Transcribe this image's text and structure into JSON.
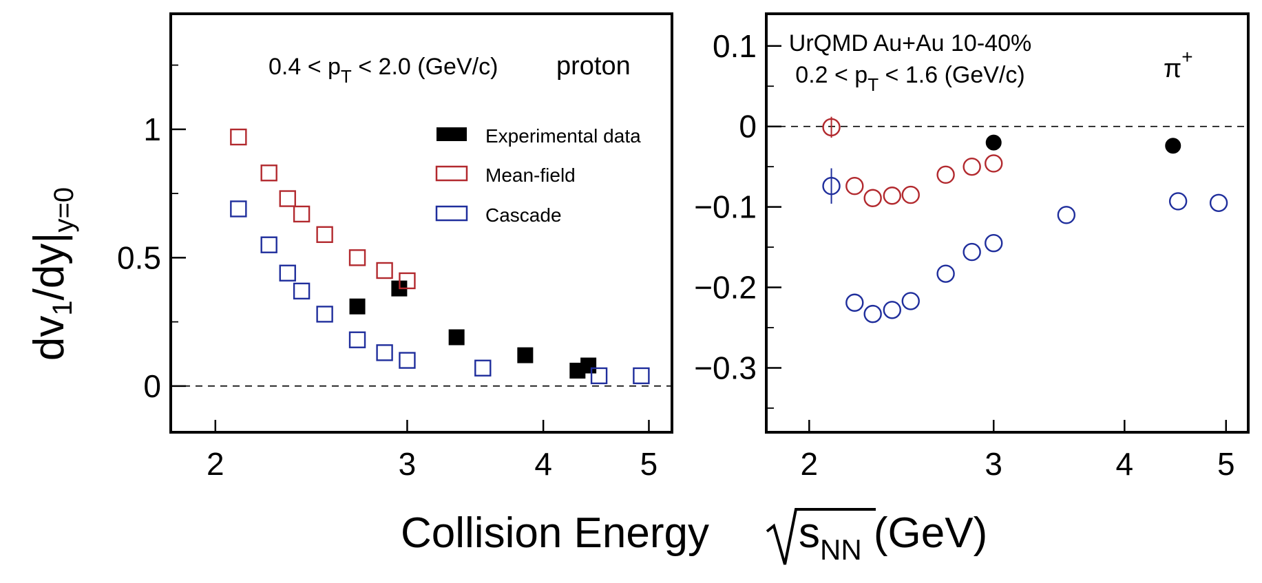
{
  "figure": {
    "ylabel": {
      "main": "dv",
      "sub1": "1",
      "mid": "/dy|",
      "sub2": "y=0"
    },
    "xlabel": {
      "prefix": "Collision Energy ",
      "s": "s",
      "sub": "NN",
      "suffix": " (GeV)"
    }
  },
  "legend": {
    "items": [
      {
        "label": "Experimental data",
        "style": "filled",
        "color": "#000000"
      },
      {
        "label": "Mean-field",
        "style": "open",
        "color": "#b2292e"
      },
      {
        "label": "Cascade",
        "style": "open",
        "color": "#1f2e9c"
      }
    ]
  },
  "chart_data": [
    {
      "type": "scatter",
      "panel": "left",
      "xscale": "log",
      "xlim": [
        1.82,
        5.25
      ],
      "ylim": [
        -0.18,
        1.45
      ],
      "xticks": [
        2,
        3,
        4,
        5
      ],
      "xtick_labels": [
        "2",
        "3",
        "4",
        "5"
      ],
      "yticks": [
        0,
        0.5,
        1
      ],
      "ytick_labels": [
        "0",
        "0.5",
        "1"
      ],
      "reference_line": 0,
      "annotation": {
        "pre": "0.4 < p",
        "sub": "T",
        "post": " < 2.0 (GeV/c)",
        "particle": "proton"
      },
      "series": [
        {
          "name": "Experimental data",
          "marker": "square",
          "fill": true,
          "color": "#000000",
          "x": [
            2.7,
            2.95,
            3.33,
            3.85,
            4.3,
            4.4
          ],
          "y": [
            0.31,
            0.38,
            0.19,
            0.12,
            0.06,
            0.08
          ]
        },
        {
          "name": "Mean-field",
          "marker": "square",
          "fill": false,
          "color": "#b2292e",
          "x": [
            2.1,
            2.24,
            2.33,
            2.4,
            2.52,
            2.7,
            2.86,
            3.0
          ],
          "y": [
            0.97,
            0.83,
            0.73,
            0.67,
            0.59,
            0.5,
            0.45,
            0.41
          ]
        },
        {
          "name": "Cascade",
          "marker": "square",
          "fill": false,
          "color": "#1f2e9c",
          "x": [
            2.1,
            2.24,
            2.33,
            2.4,
            2.52,
            2.7,
            2.86,
            3.0,
            3.52,
            4.5,
            4.92
          ],
          "y": [
            0.69,
            0.55,
            0.44,
            0.37,
            0.28,
            0.18,
            0.13,
            0.1,
            0.07,
            0.04,
            0.04
          ]
        }
      ]
    },
    {
      "type": "scatter",
      "panel": "right",
      "xscale": "log",
      "xlim": [
        1.82,
        5.25
      ],
      "ylim": [
        -0.38,
        0.14
      ],
      "xticks": [
        2,
        3,
        4,
        5
      ],
      "xtick_labels": [
        "2",
        "3",
        "4",
        "5"
      ],
      "yticks": [
        -0.3,
        -0.2,
        -0.1,
        0,
        0.1
      ],
      "ytick_labels": [
        "−0.3",
        "−0.2",
        "−0.1",
        "0",
        "0.1"
      ],
      "reference_line": 0,
      "annotation": {
        "line1": "UrQMD Au+Au 10-40%",
        "pre": "0.2 < p",
        "sub": "T",
        "post": " < 1.6 (GeV/c)",
        "particle": "π",
        "particle_sup": "+"
      },
      "series": [
        {
          "name": "Experimental data",
          "marker": "circle",
          "fill": true,
          "color": "#000000",
          "x": [
            3.0,
            4.45
          ],
          "y": [
            -0.02,
            -0.024
          ]
        },
        {
          "name": "Mean-field",
          "marker": "circle",
          "fill": false,
          "color": "#b2292e",
          "x": [
            2.1,
            2.21,
            2.3,
            2.4,
            2.5,
            2.7,
            2.86,
            3.0
          ],
          "y": [
            -0.001,
            -0.074,
            -0.089,
            -0.086,
            -0.085,
            -0.06,
            -0.05,
            -0.046
          ],
          "err": [
            0.013,
            0,
            0,
            0,
            0,
            0,
            0,
            0
          ]
        },
        {
          "name": "Cascade",
          "marker": "circle",
          "fill": false,
          "color": "#1f2e9c",
          "x": [
            2.1,
            2.21,
            2.3,
            2.4,
            2.5,
            2.7,
            2.86,
            3.0,
            3.52,
            4.5,
            4.92
          ],
          "y": [
            -0.074,
            -0.219,
            -0.233,
            -0.228,
            -0.217,
            -0.183,
            -0.156,
            -0.145,
            -0.11,
            -0.093,
            -0.095
          ],
          "err": [
            0.022,
            0,
            0,
            0,
            0,
            0,
            0,
            0,
            0,
            0,
            0
          ]
        }
      ]
    }
  ]
}
